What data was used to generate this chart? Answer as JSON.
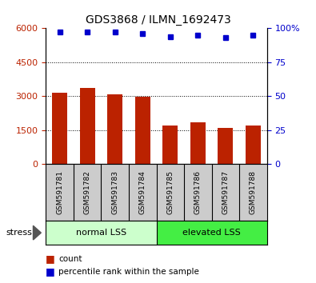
{
  "title": "GDS3868 / ILMN_1692473",
  "categories": [
    "GSM591781",
    "GSM591782",
    "GSM591783",
    "GSM591784",
    "GSM591785",
    "GSM591786",
    "GSM591787",
    "GSM591788"
  ],
  "counts": [
    3150,
    3380,
    3100,
    2980,
    1700,
    1830,
    1610,
    1690
  ],
  "percentile_ranks": [
    97,
    97,
    97,
    96,
    94,
    95,
    93,
    95
  ],
  "bar_color": "#bb2200",
  "dot_color": "#0000cc",
  "ylim_left": [
    0,
    6000
  ],
  "ylim_right": [
    0,
    100
  ],
  "yticks_left": [
    0,
    1500,
    3000,
    4500,
    6000
  ],
  "yticks_right": [
    0,
    25,
    50,
    75,
    100
  ],
  "group1_label": "normal LSS",
  "group2_label": "elevated LSS",
  "group1_count": 4,
  "group2_count": 4,
  "stress_label": "stress",
  "legend_count_label": "count",
  "legend_percentile_label": "percentile rank within the sample",
  "bar_color_hex": "#bb2200",
  "dot_color_hex": "#0000cc",
  "group1_color": "#ccffcc",
  "group2_color": "#44ee44",
  "label_bg_color": "#cccccc"
}
